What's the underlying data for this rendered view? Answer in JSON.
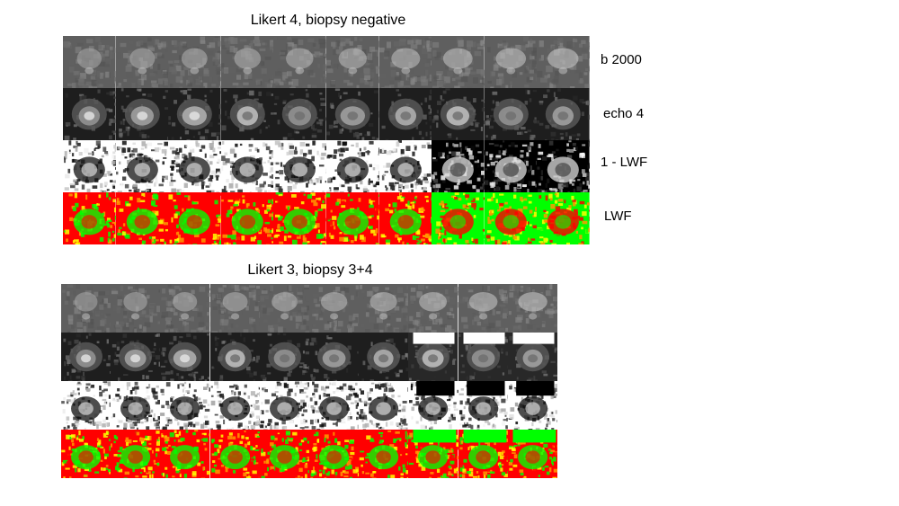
{
  "panels": [
    {
      "title": "Likert 4, biopsy negative",
      "row_labels": [
        "b 2000",
        "echo 4",
        "1 - LWF",
        "LWF"
      ],
      "columns": 10
    },
    {
      "title": "Likert 3, biopsy 3+4",
      "row_labels": [],
      "columns": 10
    }
  ],
  "row_types": [
    "b2000",
    "echo4",
    "one-minus-lwf",
    "lwf"
  ],
  "colors": {
    "lwf_red": "#ff0000",
    "lwf_green": "#00ff00",
    "lwf_yellow": "#ffff00",
    "lwf_orange": "#ff9900",
    "mri_dark": "#1a1a1a",
    "mri_mid": "#7a7a7a",
    "mri_light": "#d8d8d8"
  }
}
